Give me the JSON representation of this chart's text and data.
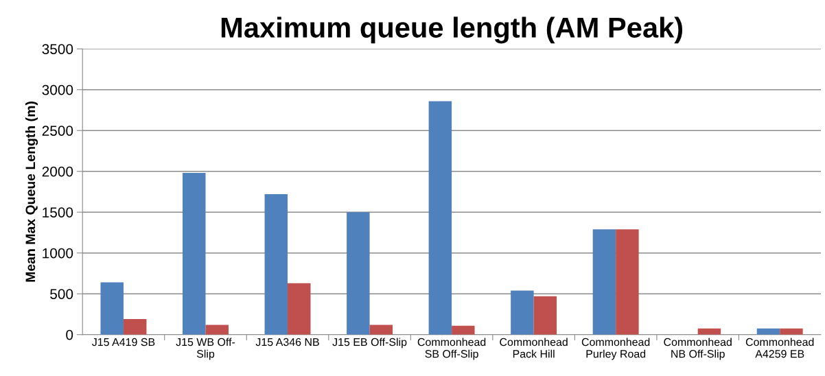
{
  "chart_data": {
    "type": "bar",
    "title": "Maximum queue length (AM Peak)",
    "ylabel": "Mean Max Queue Length (m)",
    "categories": [
      "J15 A419 SB",
      "J15 WB Off-\nSlip",
      "J15 A346 NB",
      "J15 EB Off-Slip",
      "Commonhead\nSB Off-Slip",
      "Commonhead\nPack Hill",
      "Commonhead\nPurley Road",
      "Commonhead\nNB Off-Slip",
      "Commonhead\nA4259 EB"
    ],
    "series": [
      {
        "color": "#4f81bd",
        "values": [
          640,
          1980,
          1720,
          1500,
          2860,
          540,
          1290,
          0,
          75
        ]
      },
      {
        "color": "#c0504d",
        "values": [
          190,
          120,
          630,
          120,
          110,
          470,
          1290,
          75,
          75
        ]
      }
    ],
    "ylim": [
      0,
      3500
    ],
    "yticks": [
      0,
      500,
      1000,
      1500,
      2000,
      2500,
      3000,
      3500
    ],
    "grid": "y"
  }
}
